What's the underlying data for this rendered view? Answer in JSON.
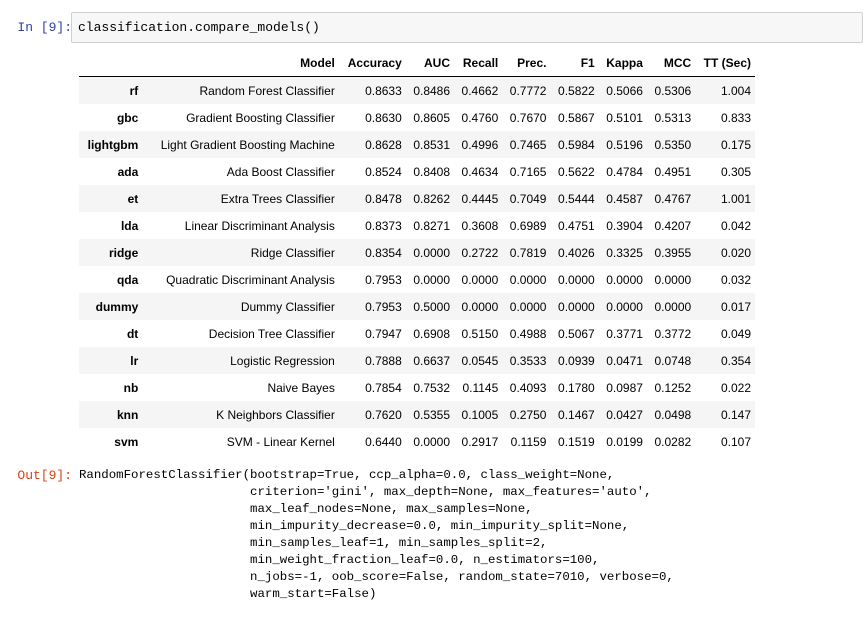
{
  "input_cell": {
    "prompt": "In [9]:",
    "code": "classification.compare_models()"
  },
  "results_table": {
    "columns": [
      "",
      "Model",
      "Accuracy",
      "AUC",
      "Recall",
      "Prec.",
      "F1",
      "Kappa",
      "MCC",
      "TT (Sec)"
    ],
    "rows": [
      [
        "rf",
        "Random Forest Classifier",
        "0.8633",
        "0.8486",
        "0.4662",
        "0.7772",
        "0.5822",
        "0.5066",
        "0.5306",
        "1.004"
      ],
      [
        "gbc",
        "Gradient Boosting Classifier",
        "0.8630",
        "0.8605",
        "0.4760",
        "0.7670",
        "0.5867",
        "0.5101",
        "0.5313",
        "0.833"
      ],
      [
        "lightgbm",
        "Light Gradient Boosting Machine",
        "0.8628",
        "0.8531",
        "0.4996",
        "0.7465",
        "0.5984",
        "0.5196",
        "0.5350",
        "0.175"
      ],
      [
        "ada",
        "Ada Boost Classifier",
        "0.8524",
        "0.8408",
        "0.4634",
        "0.7165",
        "0.5622",
        "0.4784",
        "0.4951",
        "0.305"
      ],
      [
        "et",
        "Extra Trees Classifier",
        "0.8478",
        "0.8262",
        "0.4445",
        "0.7049",
        "0.5444",
        "0.4587",
        "0.4767",
        "1.001"
      ],
      [
        "lda",
        "Linear Discriminant Analysis",
        "0.8373",
        "0.8271",
        "0.3608",
        "0.6989",
        "0.4751",
        "0.3904",
        "0.4207",
        "0.042"
      ],
      [
        "ridge",
        "Ridge Classifier",
        "0.8354",
        "0.0000",
        "0.2722",
        "0.7819",
        "0.4026",
        "0.3325",
        "0.3955",
        "0.020"
      ],
      [
        "qda",
        "Quadratic Discriminant Analysis",
        "0.7953",
        "0.0000",
        "0.0000",
        "0.0000",
        "0.0000",
        "0.0000",
        "0.0000",
        "0.032"
      ],
      [
        "dummy",
        "Dummy Classifier",
        "0.7953",
        "0.5000",
        "0.0000",
        "0.0000",
        "0.0000",
        "0.0000",
        "0.0000",
        "0.017"
      ],
      [
        "dt",
        "Decision Tree Classifier",
        "0.7947",
        "0.6908",
        "0.5150",
        "0.4988",
        "0.5067",
        "0.3771",
        "0.3772",
        "0.049"
      ],
      [
        "lr",
        "Logistic Regression",
        "0.7888",
        "0.6637",
        "0.0545",
        "0.3533",
        "0.0939",
        "0.0471",
        "0.0748",
        "0.354"
      ],
      [
        "nb",
        "Naive Bayes",
        "0.7854",
        "0.7532",
        "0.1145",
        "0.4093",
        "0.1780",
        "0.0987",
        "0.1252",
        "0.022"
      ],
      [
        "knn",
        "K Neighbors Classifier",
        "0.7620",
        "0.5355",
        "0.1005",
        "0.2750",
        "0.1467",
        "0.0427",
        "0.0498",
        "0.147"
      ],
      [
        "svm",
        "SVM - Linear Kernel",
        "0.6440",
        "0.0000",
        "0.2917",
        "0.1159",
        "0.1519",
        "0.0199",
        "0.0282",
        "0.107"
      ]
    ]
  },
  "output_cell": {
    "prompt": "Out[9]:",
    "text": "RandomForestClassifier(bootstrap=True, ccp_alpha=0.0, class_weight=None,\n                       criterion='gini', max_depth=None, max_features='auto',\n                       max_leaf_nodes=None, max_samples=None,\n                       min_impurity_decrease=0.0, min_impurity_split=None,\n                       min_samples_leaf=1, min_samples_split=2,\n                       min_weight_fraction_leaf=0.0, n_estimators=100,\n                       n_jobs=-1, oob_score=False, random_state=7010, verbose=0,\n                       warm_start=False)"
  },
  "colors": {
    "input_prompt": "#303f9f",
    "output_prompt": "#d84315",
    "code_background": "#f7f7f7",
    "code_border": "#cfcfcf",
    "row_stripe": "#f5f5f5"
  }
}
